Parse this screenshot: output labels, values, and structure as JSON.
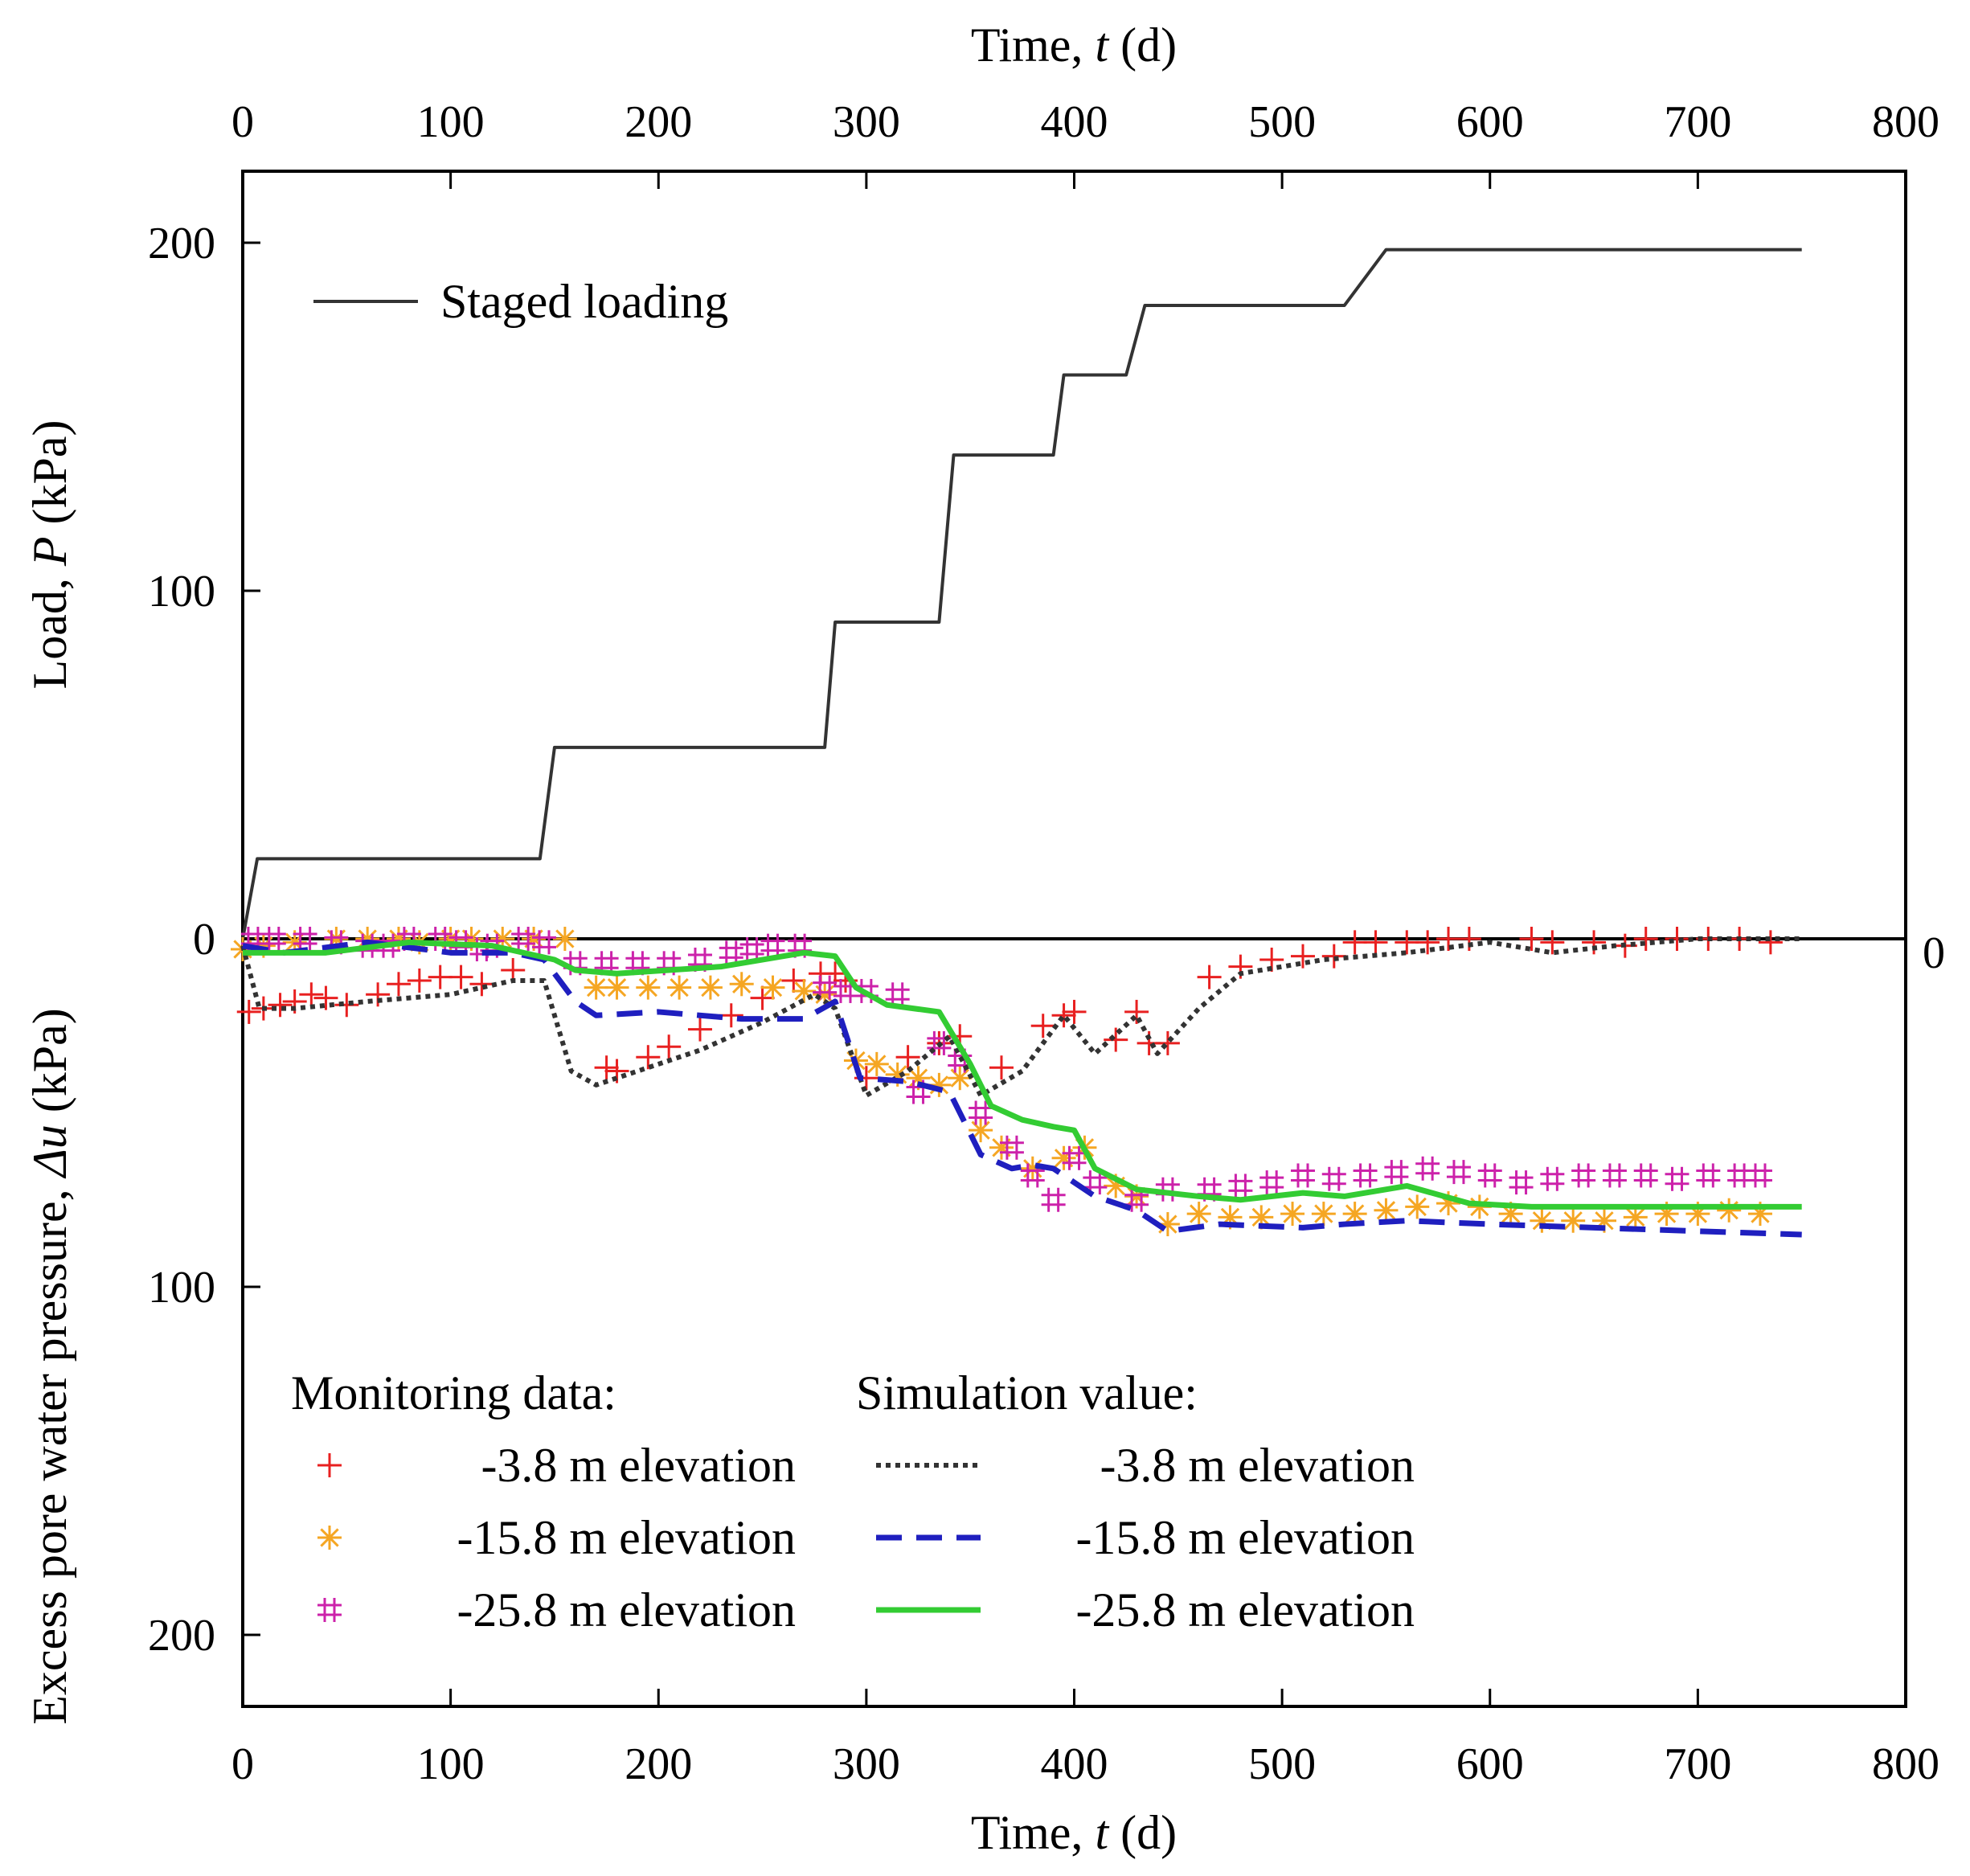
{
  "chart_data": {
    "type": "line",
    "x_axis": {
      "label_prefix": "Time, ",
      "label_var": "t",
      "label_unit": " (d)",
      "range": [
        0,
        800
      ],
      "ticks": [
        0,
        100,
        200,
        300,
        400,
        500,
        600,
        700,
        800
      ]
    },
    "load_axis": {
      "label_prefix": "Load, ",
      "label_var": "P",
      "label_unit": " (kPa)",
      "range": [
        0,
        220
      ],
      "ticks": [
        0,
        100,
        200
      ]
    },
    "pressure_axis": {
      "label_prefix": "Excess pore water pressure, ",
      "label_var": "Δu",
      "label_unit": " (kPa)",
      "range": [
        0,
        220
      ],
      "ticks": [
        0,
        100,
        200
      ],
      "right_tick_label": "0"
    },
    "legend": {
      "load": "Staged loading",
      "monitoring_title": "Monitoring data:",
      "simulation_title": "Simulation value:"
    },
    "load_series": {
      "name": "Staged loading",
      "color": "#333333",
      "points": [
        [
          0,
          0
        ],
        [
          7,
          23
        ],
        [
          143,
          23
        ],
        [
          150,
          55
        ],
        [
          280,
          55
        ],
        [
          285,
          91
        ],
        [
          335,
          91
        ],
        [
          342,
          139
        ],
        [
          390,
          139
        ],
        [
          395,
          162
        ],
        [
          425,
          162
        ],
        [
          434,
          182
        ],
        [
          530,
          182
        ],
        [
          550,
          198
        ],
        [
          750,
          198
        ]
      ]
    },
    "simulation": [
      {
        "name": "-3.8 m elevation",
        "style": "dotted",
        "color": "#333333",
        "points": [
          [
            0,
            2
          ],
          [
            8,
            20
          ],
          [
            25,
            20
          ],
          [
            60,
            18
          ],
          [
            100,
            16
          ],
          [
            130,
            12
          ],
          [
            145,
            12
          ],
          [
            158,
            38
          ],
          [
            170,
            42
          ],
          [
            190,
            38
          ],
          [
            220,
            32
          ],
          [
            250,
            24
          ],
          [
            275,
            16
          ],
          [
            285,
            20
          ],
          [
            300,
            45
          ],
          [
            320,
            38
          ],
          [
            340,
            28
          ],
          [
            355,
            45
          ],
          [
            375,
            38
          ],
          [
            385,
            30
          ],
          [
            395,
            22
          ],
          [
            410,
            33
          ],
          [
            430,
            22
          ],
          [
            440,
            33
          ],
          [
            460,
            20
          ],
          [
            480,
            10
          ],
          [
            520,
            6
          ],
          [
            560,
            4
          ],
          [
            600,
            1
          ],
          [
            630,
            4
          ],
          [
            660,
            2
          ],
          [
            700,
            0
          ],
          [
            750,
            0
          ]
        ]
      },
      {
        "name": "-15.8 m elevation",
        "style": "dashed",
        "color": "#1f1fbf",
        "points": [
          [
            0,
            2
          ],
          [
            20,
            4
          ],
          [
            60,
            1
          ],
          [
            100,
            4
          ],
          [
            130,
            4
          ],
          [
            145,
            6
          ],
          [
            160,
            18
          ],
          [
            170,
            22
          ],
          [
            200,
            21
          ],
          [
            240,
            23
          ],
          [
            270,
            23
          ],
          [
            285,
            18
          ],
          [
            297,
            40
          ],
          [
            320,
            41
          ],
          [
            340,
            44
          ],
          [
            355,
            62
          ],
          [
            370,
            66
          ],
          [
            380,
            65
          ],
          [
            390,
            66
          ],
          [
            400,
            70
          ],
          [
            410,
            74
          ],
          [
            430,
            78
          ],
          [
            445,
            84
          ],
          [
            470,
            82
          ],
          [
            510,
            83
          ],
          [
            530,
            82
          ],
          [
            560,
            81
          ],
          [
            600,
            82
          ],
          [
            700,
            84
          ],
          [
            750,
            85
          ]
        ]
      },
      {
        "name": "-25.8 m elevation",
        "style": "solid",
        "color": "#33cc33",
        "points": [
          [
            0,
            4
          ],
          [
            40,
            4
          ],
          [
            80,
            1
          ],
          [
            120,
            2
          ],
          [
            150,
            6
          ],
          [
            160,
            9
          ],
          [
            180,
            10
          ],
          [
            230,
            8
          ],
          [
            270,
            4
          ],
          [
            285,
            5
          ],
          [
            295,
            14
          ],
          [
            310,
            19
          ],
          [
            335,
            21
          ],
          [
            350,
            36
          ],
          [
            360,
            48
          ],
          [
            375,
            52
          ],
          [
            390,
            54
          ],
          [
            400,
            55
          ],
          [
            410,
            66
          ],
          [
            430,
            72
          ],
          [
            460,
            74
          ],
          [
            480,
            75
          ],
          [
            510,
            73
          ],
          [
            530,
            74
          ],
          [
            560,
            71
          ],
          [
            590,
            76
          ],
          [
            620,
            77
          ],
          [
            700,
            77
          ],
          [
            750,
            77
          ]
        ]
      }
    ],
    "monitoring": [
      {
        "name": "-3.8 m elevation",
        "marker": "plus",
        "color": "#e82020",
        "points": [
          [
            3,
            21
          ],
          [
            10,
            20
          ],
          [
            18,
            19
          ],
          [
            25,
            18
          ],
          [
            33,
            16
          ],
          [
            40,
            17
          ],
          [
            50,
            19
          ],
          [
            65,
            16
          ],
          [
            75,
            13
          ],
          [
            85,
            12
          ],
          [
            95,
            11
          ],
          [
            105,
            11
          ],
          [
            115,
            13
          ],
          [
            130,
            9
          ],
          [
            175,
            37
          ],
          [
            180,
            38
          ],
          [
            195,
            34
          ],
          [
            205,
            31
          ],
          [
            220,
            26
          ],
          [
            235,
            22
          ],
          [
            250,
            17
          ],
          [
            265,
            12
          ],
          [
            278,
            10
          ],
          [
            285,
            10
          ],
          [
            290,
            12
          ],
          [
            300,
            40
          ],
          [
            320,
            34
          ],
          [
            335,
            30
          ],
          [
            345,
            28
          ],
          [
            365,
            37
          ],
          [
            385,
            25
          ],
          [
            395,
            22
          ],
          [
            400,
            21
          ],
          [
            420,
            29
          ],
          [
            430,
            21
          ],
          [
            436,
            30
          ],
          [
            445,
            30
          ],
          [
            465,
            11
          ],
          [
            480,
            8
          ],
          [
            495,
            6
          ],
          [
            510,
            5
          ],
          [
            525,
            5
          ],
          [
            535,
            1
          ],
          [
            545,
            1
          ],
          [
            560,
            1
          ],
          [
            570,
            1
          ],
          [
            580,
            0
          ],
          [
            590,
            0
          ],
          [
            620,
            0
          ],
          [
            630,
            1
          ],
          [
            650,
            1
          ],
          [
            665,
            2
          ],
          [
            675,
            0
          ],
          [
            690,
            0
          ],
          [
            705,
            0
          ],
          [
            720,
            0
          ],
          [
            735,
            1
          ]
        ]
      },
      {
        "name": "-15.8 m elevation",
        "marker": "asterisk",
        "color": "#f5a623",
        "points": [
          [
            0,
            3
          ],
          [
            10,
            2
          ],
          [
            25,
            1
          ],
          [
            45,
            0
          ],
          [
            60,
            0
          ],
          [
            75,
            0
          ],
          [
            85,
            1
          ],
          [
            100,
            0
          ],
          [
            110,
            0
          ],
          [
            125,
            0
          ],
          [
            140,
            0
          ],
          [
            155,
            0
          ],
          [
            170,
            14
          ],
          [
            180,
            14
          ],
          [
            195,
            14
          ],
          [
            210,
            14
          ],
          [
            225,
            14
          ],
          [
            240,
            13
          ],
          [
            255,
            14
          ],
          [
            270,
            15
          ],
          [
            280,
            16
          ],
          [
            295,
            35
          ],
          [
            305,
            36
          ],
          [
            315,
            39
          ],
          [
            325,
            40
          ],
          [
            335,
            42
          ],
          [
            345,
            40
          ],
          [
            355,
            55
          ],
          [
            365,
            60
          ],
          [
            380,
            66
          ],
          [
            395,
            63
          ],
          [
            405,
            60
          ],
          [
            420,
            71
          ],
          [
            430,
            74
          ],
          [
            445,
            82
          ],
          [
            460,
            79
          ],
          [
            475,
            80
          ],
          [
            490,
            80
          ],
          [
            505,
            79
          ],
          [
            520,
            79
          ],
          [
            535,
            79
          ],
          [
            550,
            78
          ],
          [
            565,
            77
          ],
          [
            580,
            76
          ],
          [
            595,
            77
          ],
          [
            610,
            79
          ],
          [
            625,
            81
          ],
          [
            640,
            81
          ],
          [
            655,
            81
          ],
          [
            670,
            80
          ],
          [
            685,
            79
          ],
          [
            700,
            79
          ],
          [
            715,
            78
          ],
          [
            730,
            79
          ]
        ]
      },
      {
        "name": "-25.8 m elevation",
        "marker": "hash",
        "color": "#cc22aa",
        "points": [
          [
            5,
            0
          ],
          [
            15,
            0
          ],
          [
            30,
            0
          ],
          [
            45,
            1
          ],
          [
            60,
            2
          ],
          [
            70,
            2
          ],
          [
            80,
            0
          ],
          [
            95,
            0
          ],
          [
            105,
            1
          ],
          [
            115,
            3
          ],
          [
            120,
            2
          ],
          [
            135,
            0
          ],
          [
            145,
            1
          ],
          [
            160,
            7
          ],
          [
            175,
            7
          ],
          [
            190,
            7
          ],
          [
            205,
            7
          ],
          [
            220,
            6
          ],
          [
            235,
            4
          ],
          [
            245,
            3
          ],
          [
            255,
            2
          ],
          [
            268,
            2
          ],
          [
            280,
            14
          ],
          [
            290,
            15
          ],
          [
            300,
            15
          ],
          [
            315,
            16
          ],
          [
            325,
            44
          ],
          [
            335,
            30
          ],
          [
            345,
            35
          ],
          [
            355,
            50
          ],
          [
            370,
            60
          ],
          [
            380,
            68
          ],
          [
            390,
            75
          ],
          [
            400,
            63
          ],
          [
            410,
            70
          ],
          [
            430,
            75
          ],
          [
            445,
            72
          ],
          [
            465,
            72
          ],
          [
            480,
            71
          ],
          [
            495,
            70
          ],
          [
            510,
            68
          ],
          [
            525,
            69
          ],
          [
            540,
            68
          ],
          [
            555,
            67
          ],
          [
            570,
            66
          ],
          [
            585,
            67
          ],
          [
            600,
            68
          ],
          [
            615,
            70
          ],
          [
            630,
            69
          ],
          [
            645,
            68
          ],
          [
            660,
            68
          ],
          [
            675,
            68
          ],
          [
            690,
            69
          ],
          [
            705,
            68
          ],
          [
            720,
            68
          ],
          [
            730,
            68
          ]
        ]
      }
    ]
  }
}
